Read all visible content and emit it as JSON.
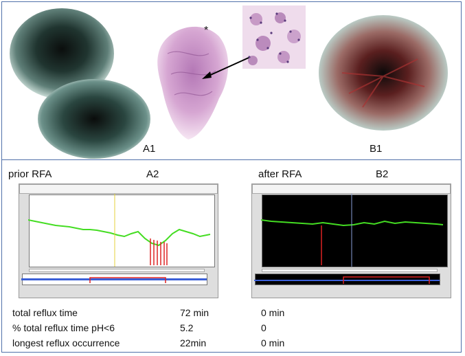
{
  "panels": {
    "a1": {
      "label": "A1"
    },
    "b1": {
      "label": "B1"
    },
    "asterisk": "*",
    "prior": {
      "title": "prior RFA",
      "label": "A2"
    },
    "after": {
      "title": "after RFA",
      "label": "B2"
    }
  },
  "stats": [
    {
      "label": "total reflux time",
      "prior": "72 min",
      "after": "0 min"
    },
    {
      "label": "% total reflux time pH<6",
      "prior": "5.2",
      "after": "0"
    },
    {
      "label": "longest reflux occurrence",
      "prior": "22min",
      "after": "0 min"
    }
  ],
  "colors": {
    "frame": "#4f6fa8",
    "trace": "#44dd22",
    "reflux_marker": "#dd2222",
    "histology": "#c98ac0"
  }
}
